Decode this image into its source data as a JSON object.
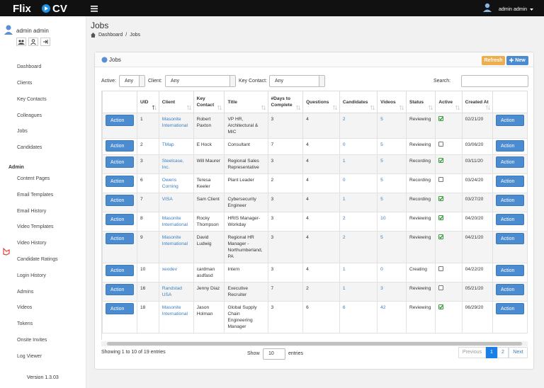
{
  "topbar": {
    "brand_left": "Flix",
    "brand_right": "CV",
    "user": "admin admin"
  },
  "sidebar": {
    "user": "admin admin",
    "nav": [
      "Dashboard",
      "Clients",
      "Key Contacts",
      "Colleagues",
      "Jobs",
      "Candidates"
    ],
    "section": "Admin",
    "admin_nav": [
      "Content Pages",
      "Email Templates",
      "Email History",
      "Video Templates",
      "Video History",
      "Candidate Ratings",
      "Login History",
      "Admins",
      "Videos",
      "Tokens",
      "Onsite Invites",
      "Log Viewer"
    ],
    "version": "Version 1.3.03"
  },
  "page": {
    "title": "Jobs",
    "breadcrumb": [
      "Dashboard",
      "Jobs"
    ],
    "breadcrumb_separator": "/"
  },
  "panel": {
    "title": "Jobs",
    "refresh": "Refresh",
    "new": "New",
    "filters": [
      {
        "label": "Active:",
        "value": "Any"
      },
      {
        "label": "Client:",
        "value": "Any"
      },
      {
        "label": "Key Contact:",
        "value": "Any"
      }
    ],
    "search_label": "Search:"
  },
  "table": {
    "columns": [
      "UID",
      "Client",
      "Key Contact",
      "Title",
      "#Days to Complete",
      "Questions",
      "Candidates",
      "Videos",
      "Status",
      "Active",
      "Created At"
    ],
    "action_label": "Action",
    "rows": [
      {
        "uid": 1,
        "client": "Masonite International",
        "key_contact": "Robert Paxton",
        "title": "VP HR, Architectural & MIC",
        "days": 3,
        "questions": 4,
        "candidates": 2,
        "videos": 5,
        "status": "Reviewing",
        "active": true,
        "created": "02/21/20"
      },
      {
        "uid": 2,
        "client": "TMap",
        "key_contact": "E Hock",
        "title": "Consultant",
        "days": 7,
        "questions": 4,
        "candidates": 0,
        "videos": 5,
        "status": "Reviewing",
        "active": false,
        "created": "03/06/20"
      },
      {
        "uid": 3,
        "client": "Steelcase, Inc.",
        "key_contact": "Will Maurer",
        "title": "Regional Sales Representative",
        "days": 3,
        "questions": 4,
        "candidates": 1,
        "videos": 5,
        "status": "Recording",
        "active": true,
        "created": "03/11/20"
      },
      {
        "uid": 6,
        "client": "Owens Corning",
        "key_contact": "Teresa Keeler",
        "title": "Plant Leader",
        "days": 2,
        "questions": 4,
        "candidates": 0,
        "videos": 5,
        "status": "Recording",
        "active": false,
        "created": "03/24/20"
      },
      {
        "uid": 7,
        "client": "VISA",
        "key_contact": "Sam Client",
        "title": "Cybersecurity Engineer",
        "days": 3,
        "questions": 4,
        "candidates": 1,
        "videos": 5,
        "status": "Recording",
        "active": true,
        "created": "03/27/20"
      },
      {
        "uid": 8,
        "client": "Masonite International",
        "key_contact": "Rocky Thompson",
        "title": "HRIS Manager-Workday",
        "days": 3,
        "questions": 4,
        "candidates": 2,
        "videos": 10,
        "status": "Reviewing",
        "active": true,
        "created": "04/20/20"
      },
      {
        "uid": 9,
        "client": "Masonite International",
        "key_contact": "David Ludwig",
        "title": "Regional HR Manager - Northumberland, PA",
        "days": 3,
        "questions": 4,
        "candidates": 2,
        "videos": 5,
        "status": "Reviewing",
        "active": true,
        "created": "04/21/20"
      },
      {
        "uid": 10,
        "client": "xeodev",
        "key_contact": "cardman asdfasd",
        "title": "Intern",
        "days": 3,
        "questions": 4,
        "candidates": 1,
        "videos": 0,
        "status": "Creating",
        "active": false,
        "created": "04/22/20"
      },
      {
        "uid": 16,
        "client": "Randstad USA",
        "key_contact": "Jenny Diaz",
        "title": "Executive Recruiter",
        "days": 7,
        "questions": 2,
        "candidates": 1,
        "videos": 3,
        "status": "Reviewing",
        "active": false,
        "created": "05/21/20"
      },
      {
        "uid": 18,
        "client": "Masonite International",
        "key_contact": "Jason Holman",
        "title": "Global Supply Chain Engineering Manager",
        "days": 3,
        "questions": 6,
        "candidates": 6,
        "videos": 42,
        "status": "Reviewing",
        "active": true,
        "created": "06/29/20"
      }
    ]
  },
  "footer": {
    "info": "Showing 1 to 10 of 19 entries",
    "show": "Show",
    "page_size": 10,
    "entries": "entries",
    "previous": "Previous",
    "pages": [
      1,
      2
    ],
    "current_page": 1,
    "next": "Next"
  }
}
